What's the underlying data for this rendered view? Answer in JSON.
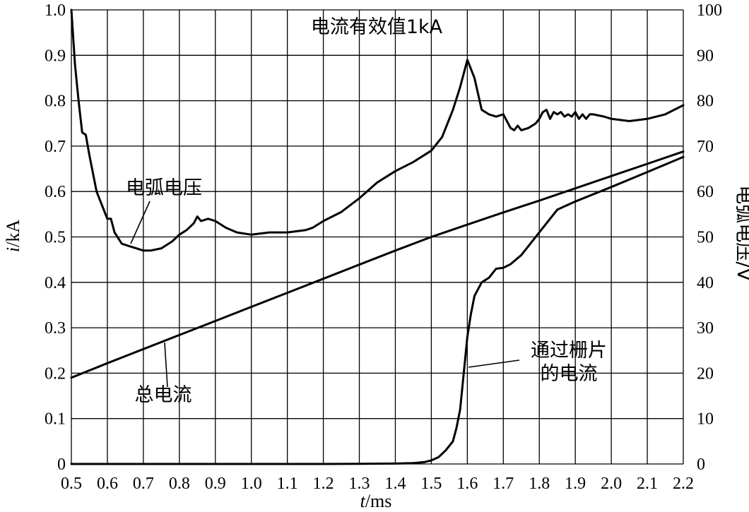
{
  "chart_data": {
    "type": "line",
    "title": "电流有效值1kA",
    "xlabel_italic": "t",
    "xlabel_unit": "/ms",
    "ylabel_italic": "i",
    "ylabel_unit": "/kA",
    "y2label": "电弧电压/V",
    "xlim": [
      0.5,
      2.2
    ],
    "ylim": [
      0,
      1.0
    ],
    "y2lim": [
      0,
      100
    ],
    "x_ticks": [
      "0.5",
      "0.6",
      "0.7",
      "0.8",
      "0.9",
      "1.0",
      "1.1",
      "1.2",
      "1.3",
      "1.4",
      "1.5",
      "1.6",
      "1.7",
      "1.8",
      "1.9",
      "2.0",
      "2.1",
      "2.2"
    ],
    "y_ticks": [
      "0",
      "0.1",
      "0.2",
      "0.3",
      "0.4",
      "0.5",
      "0.6",
      "0.7",
      "0.8",
      "0.9",
      "1.0"
    ],
    "y2_ticks": [
      "0",
      "10",
      "20",
      "30",
      "40",
      "50",
      "60",
      "70",
      "80",
      "90",
      "100"
    ],
    "grid": true,
    "annotations": {
      "arc_voltage": "电弧电压",
      "total_current": "总电流",
      "grid_current_line1": "通过栅片",
      "grid_current_line2": "的电流"
    },
    "series": [
      {
        "name": "电弧电压",
        "axis": "right",
        "x": [
          0.5,
          0.51,
          0.52,
          0.53,
          0.54,
          0.55,
          0.57,
          0.59,
          0.6,
          0.61,
          0.62,
          0.64,
          0.66,
          0.68,
          0.7,
          0.72,
          0.75,
          0.78,
          0.8,
          0.82,
          0.84,
          0.85,
          0.86,
          0.88,
          0.9,
          0.93,
          0.96,
          1.0,
          1.05,
          1.1,
          1.15,
          1.17,
          1.2,
          1.25,
          1.3,
          1.35,
          1.4,
          1.45,
          1.5,
          1.53,
          1.56,
          1.58,
          1.6,
          1.62,
          1.64,
          1.66,
          1.68,
          1.7,
          1.72,
          1.73,
          1.74,
          1.75,
          1.77,
          1.79,
          1.8,
          1.81,
          1.82,
          1.83,
          1.84,
          1.85,
          1.86,
          1.87,
          1.88,
          1.89,
          1.9,
          1.91,
          1.92,
          1.93,
          1.94,
          1.95,
          1.98,
          2.0,
          2.05,
          2.1,
          2.15,
          2.2
        ],
        "y": [
          100,
          88,
          80,
          73,
          72.5,
          68,
          60,
          56,
          54,
          54,
          51,
          48.5,
          48,
          47.5,
          47,
          47,
          47.5,
          49,
          50.5,
          51.5,
          53,
          54.5,
          53.5,
          54,
          53.5,
          52,
          51,
          50.5,
          51,
          51,
          51.5,
          52,
          53.5,
          55.5,
          58.5,
          62,
          64.5,
          66.5,
          69,
          72,
          78,
          83,
          89,
          85,
          78,
          77,
          76.5,
          77,
          74,
          73.5,
          74.5,
          73.5,
          74,
          75,
          76,
          77.5,
          78,
          76,
          77.5,
          77,
          77.5,
          76.5,
          77,
          76.5,
          77.5,
          76,
          77,
          76,
          77,
          77,
          76.5,
          76,
          75.5,
          76,
          77,
          79
        ]
      },
      {
        "name": "总电流",
        "axis": "left",
        "x": [
          0.5,
          0.6,
          0.7,
          0.8,
          0.9,
          1.0,
          1.1,
          1.2,
          1.3,
          1.4,
          1.5,
          1.6,
          1.7,
          1.8,
          1.9,
          2.0,
          2.1,
          2.2
        ],
        "y": [
          0.19,
          0.222,
          0.253,
          0.284,
          0.315,
          0.346,
          0.377,
          0.408,
          0.439,
          0.47,
          0.5,
          0.527,
          0.554,
          0.58,
          0.607,
          0.634,
          0.661,
          0.688
        ]
      },
      {
        "name": "通过栅片的电流",
        "axis": "left",
        "x": [
          0.5,
          0.8,
          1.0,
          1.2,
          1.4,
          1.45,
          1.48,
          1.5,
          1.52,
          1.54,
          1.56,
          1.57,
          1.58,
          1.59,
          1.6,
          1.61,
          1.62,
          1.64,
          1.66,
          1.67,
          1.68,
          1.7,
          1.72,
          1.75,
          1.78,
          1.8,
          1.82,
          1.85,
          1.9,
          2.0,
          2.1,
          2.2
        ],
        "y": [
          0,
          0,
          0,
          0,
          0.001,
          0.002,
          0.004,
          0.008,
          0.015,
          0.03,
          0.05,
          0.08,
          0.12,
          0.2,
          0.28,
          0.33,
          0.37,
          0.4,
          0.41,
          0.42,
          0.43,
          0.432,
          0.44,
          0.46,
          0.49,
          0.51,
          0.53,
          0.56,
          0.578,
          0.61,
          0.643,
          0.676
        ]
      }
    ]
  }
}
